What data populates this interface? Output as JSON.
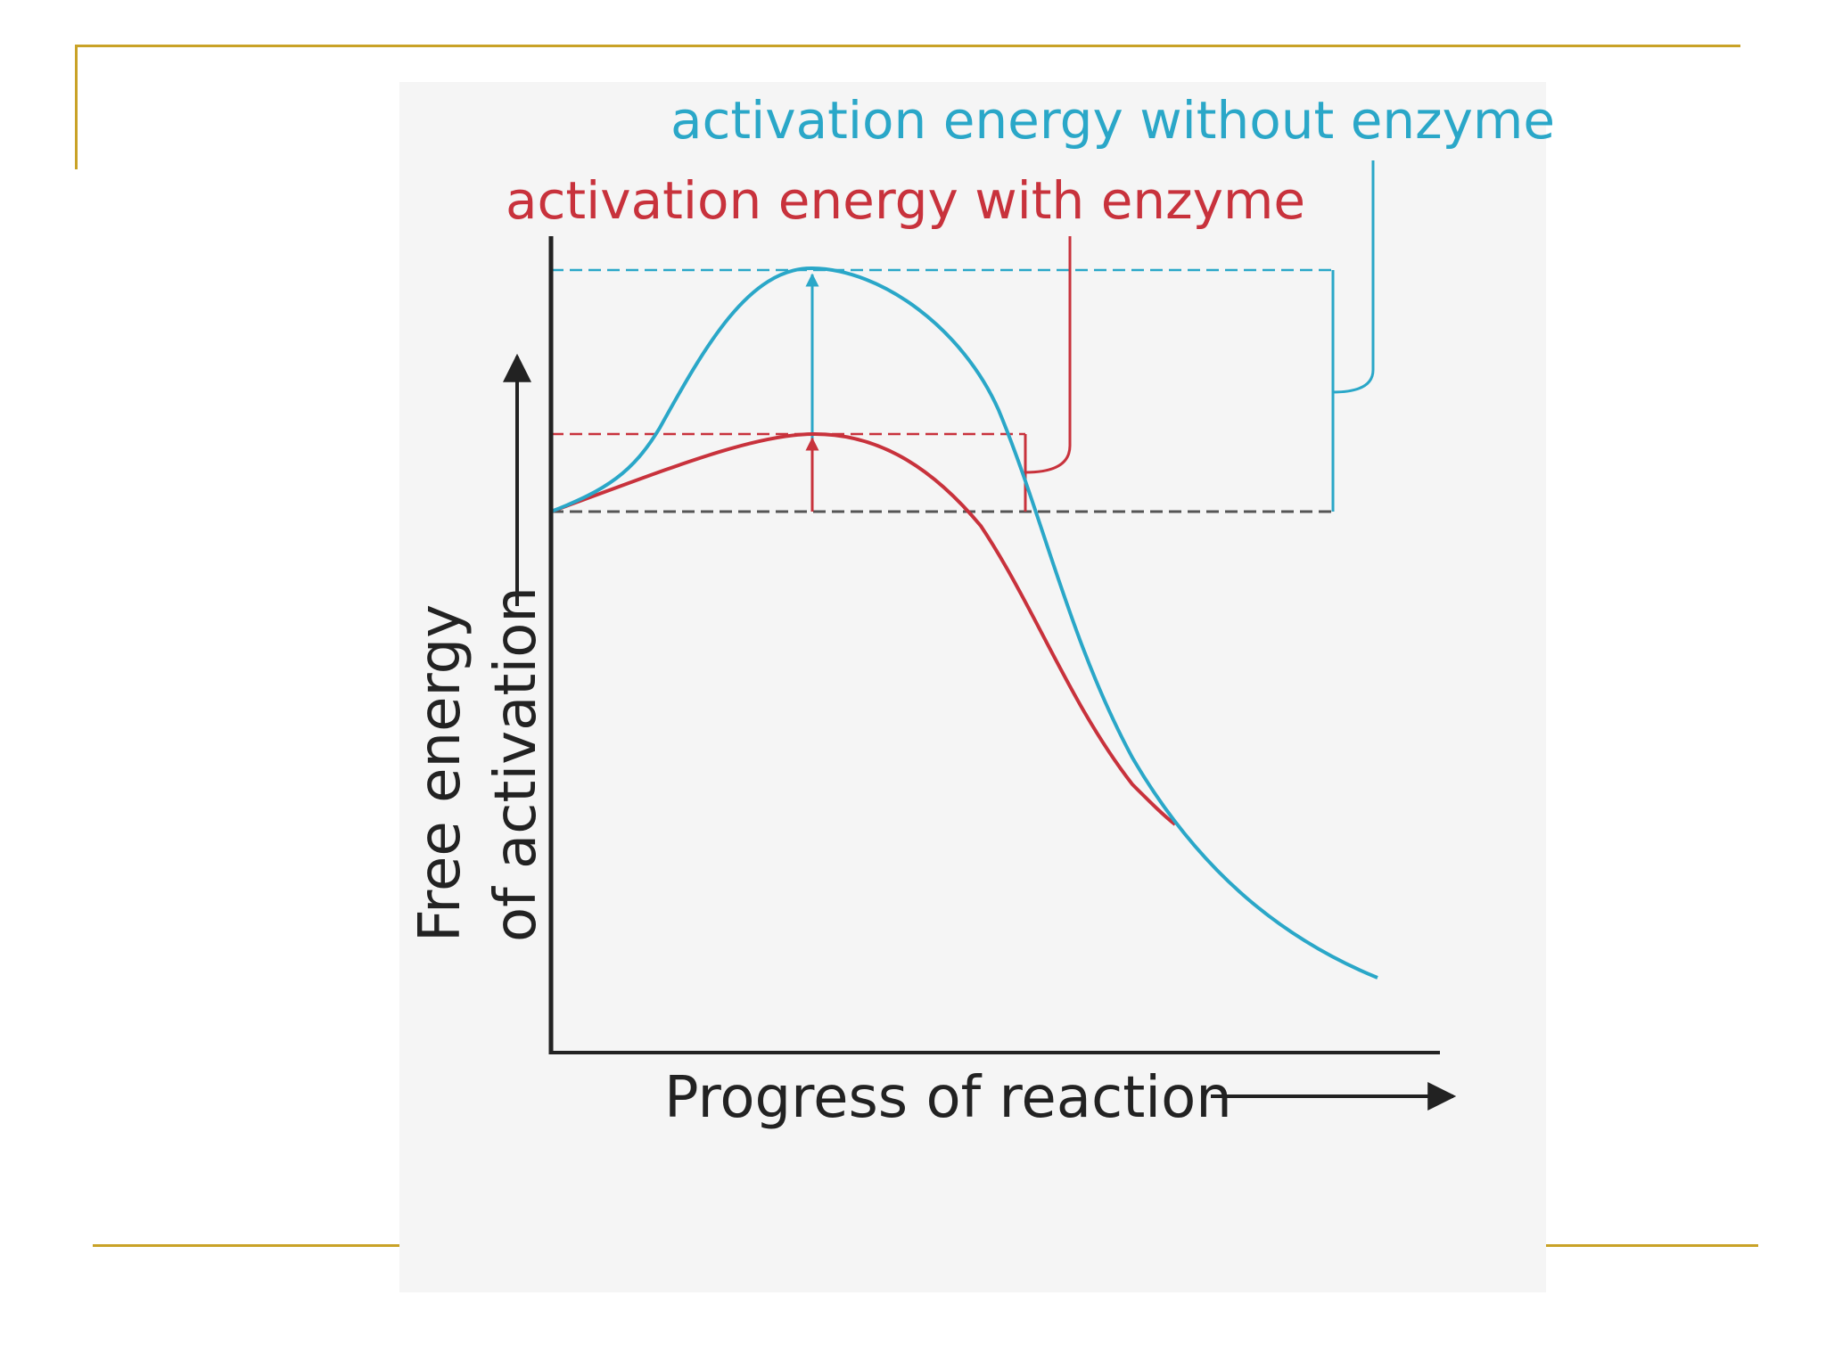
{
  "slide": {
    "accent_color": "#c9a227",
    "panel_color": "#f5f5f5"
  },
  "diagram": {
    "label_without_enzyme": "activation energy without enzyme",
    "label_with_enzyme": "activation energy with enzyme",
    "y_axis_label_line1": "Free energy",
    "y_axis_label_line2": "of activation",
    "x_axis_label": "Progress of reaction",
    "colors": {
      "without_enzyme": "#2aa7c8",
      "with_enzyme": "#c8323c",
      "axis": "#222222",
      "baseline": "#555555"
    }
  }
}
